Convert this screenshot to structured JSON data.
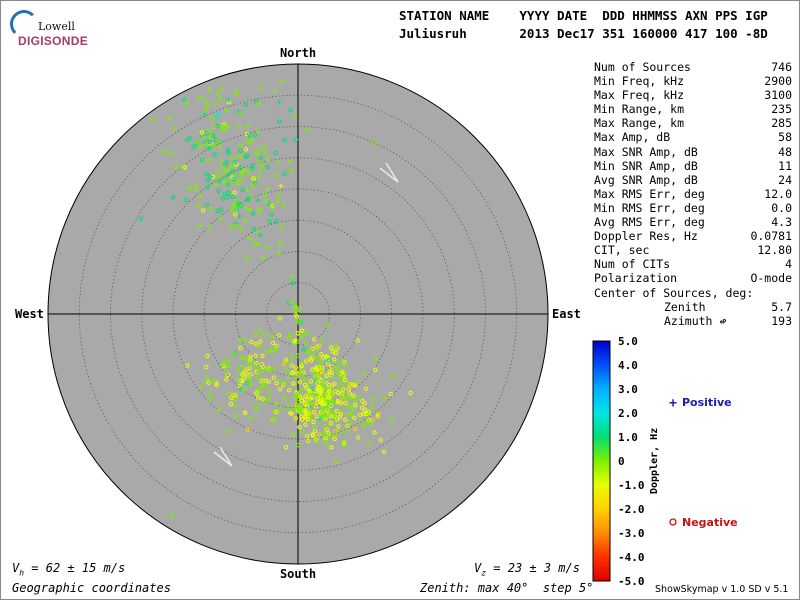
{
  "header": {
    "line1": "STATION NAME    YYYY DATE  DDD HHMMSS AXN PPS IGP",
    "line2": "Juliusruh       2013 Dec17 351 160000 417 100 -8D"
  },
  "logo": {
    "top": "Lowell",
    "bottom": "DIGISONDE"
  },
  "directions": {
    "north": "North",
    "south": "South",
    "east": "East",
    "west": "West"
  },
  "stats": [
    {
      "label": "Num of Sources",
      "value": "746"
    },
    {
      "label": "Min Freq, kHz",
      "value": "2900"
    },
    {
      "label": "Max Freq, kHz",
      "value": "3100"
    },
    {
      "label": "Min Range, km",
      "value": "235"
    },
    {
      "label": "Max Range, km",
      "value": "285"
    },
    {
      "label": "Max Amp, dB",
      "value": "58"
    },
    {
      "label": "Max SNR Amp, dB",
      "value": "48"
    },
    {
      "label": "Min SNR Amp, dB",
      "value": "11"
    },
    {
      "label": "Avg SNR Amp, dB",
      "value": "24"
    },
    {
      "label": "Max RMS Err, deg",
      "value": "12.0"
    },
    {
      "label": "Min RMS Err, deg",
      "value": "0.0"
    },
    {
      "label": "Avg RMS Err, deg",
      "value": "4.3"
    },
    {
      "label": "Doppler Res, Hz",
      "value": "0.0781"
    },
    {
      "label": "CIT, sec",
      "value": "12.80"
    },
    {
      "label": "Num of CITs",
      "value": "4"
    },
    {
      "label": "Polarization",
      "value": "O-mode"
    },
    {
      "label": "Center of Sources, deg:",
      "value": ""
    },
    {
      "label": "Zenith",
      "value": "5.7"
    },
    {
      "label": "Azimuth ↫",
      "value": "193"
    }
  ],
  "bottom": {
    "vh_value": " = 62 ± 15 m/s",
    "vz_value": " = 23 ± 3 m/s",
    "coords": "Geographic coordinates",
    "zenith": "Zenith: max 40°  step 5°",
    "version": "ShowSkymap v 1.0   SD v 5.1"
  },
  "legend": {
    "positive": "Positive",
    "negative": "Negative"
  },
  "colors": {
    "disk": "#a9a9a9",
    "positive_symbol": "#1a1ab8",
    "negative_symbol": "#cc1111"
  },
  "chart_data": {
    "type": "scatter",
    "title": "",
    "coordinate_system": "polar-skymap",
    "zenith_max_deg": 40,
    "zenith_step_deg": 5,
    "colorbar": {
      "label": "Doppler, Hz",
      "ticks": [
        "5.0",
        "4.0",
        "3.0",
        "2.0",
        "1.0",
        "0",
        "-1.0",
        "-2.0",
        "-3.0",
        "-4.0",
        "-5.0"
      ],
      "range": [
        -5.0,
        5.0
      ],
      "colors": [
        "#0000cc",
        "#0050ff",
        "#00b0ff",
        "#00e6e6",
        "#00e070",
        "#7cf000",
        "#e8ff00",
        "#ffd000",
        "#ff8c00",
        "#ff3000",
        "#e00000"
      ]
    },
    "clusters": [
      {
        "name": "northwest",
        "zenith_center": 26,
        "azimuth_center": 336,
        "zenith_spread": 7,
        "azimuth_spread": 10,
        "count": 240,
        "doppler_mean": 0.3
      },
      {
        "name": "south-main",
        "zenith_center": 15,
        "azimuth_center": 160,
        "zenith_spread": 4,
        "azimuth_spread": 14,
        "count": 330,
        "doppler_mean": -0.6
      },
      {
        "name": "south-west",
        "zenith_center": 13,
        "azimuth_center": 215,
        "zenith_spread": 4,
        "azimuth_spread": 14,
        "count": 130,
        "doppler_mean": -0.4
      },
      {
        "name": "center-spine",
        "zenith_center": 6,
        "azimuth_center": 180,
        "zenith_spread": 5,
        "azimuth_spread": 40,
        "count": 46,
        "doppler_mean": -0.2
      }
    ],
    "outliers": [
      {
        "zenith": 38,
        "azimuth": 212,
        "doppler": 0.1,
        "symbol": "circle"
      },
      {
        "zenith": 30,
        "azimuth": 24,
        "doppler": 0.5,
        "symbol": "circle"
      },
      {
        "zenith": 36,
        "azimuth": 342,
        "doppler": 0.8,
        "symbol": "plus"
      },
      {
        "zenith": 34,
        "azimuth": 355,
        "doppler": 0.8,
        "symbol": "plus"
      },
      {
        "zenith": 22,
        "azimuth": 125,
        "doppler": -0.5,
        "symbol": "circle"
      },
      {
        "zenith": 20,
        "azimuth": 150,
        "doppler": -0.4,
        "symbol": "circle"
      },
      {
        "zenith": 26,
        "azimuth": 148,
        "doppler": -0.8,
        "symbol": "circle"
      }
    ]
  }
}
